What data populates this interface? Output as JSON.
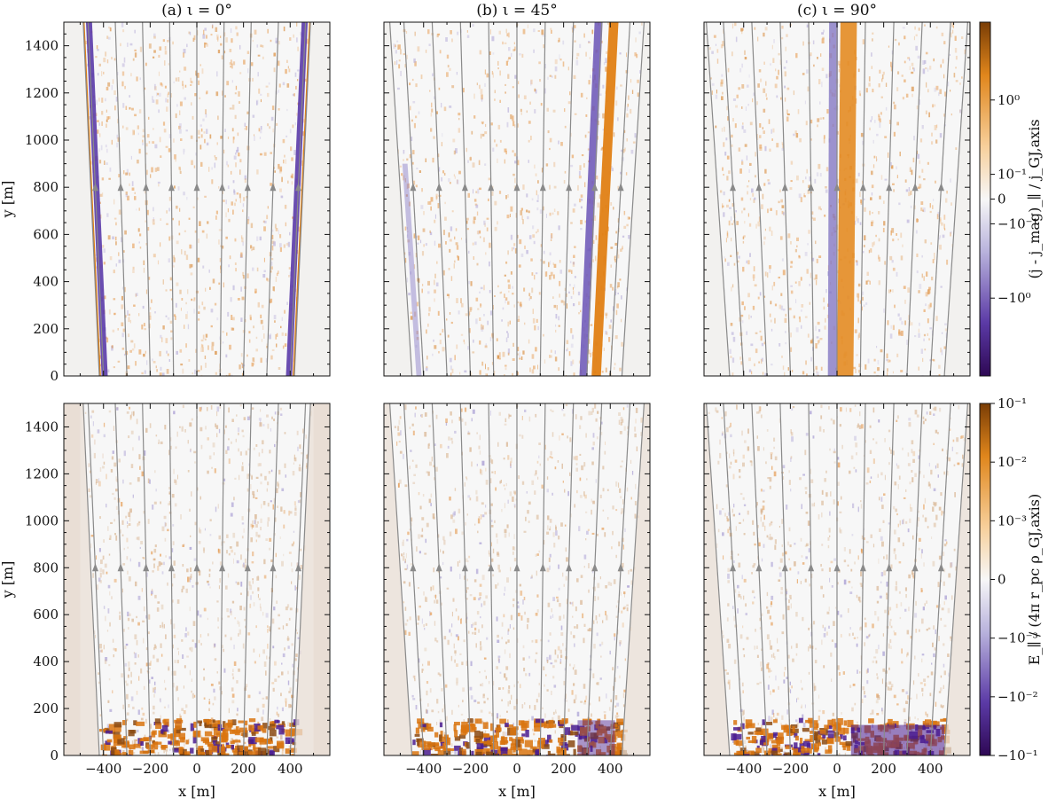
{
  "chart_data": [
    {
      "type": "heatmap",
      "title": "(a) ι = 0°",
      "row": 0,
      "col": 0,
      "xlabel": "",
      "ylabel": "y [m]",
      "xlim": [
        -570,
        570
      ],
      "ylim": [
        0,
        1500
      ],
      "xticks": [],
      "yticks": [
        0,
        200,
        400,
        600,
        800,
        1000,
        1200,
        1400
      ],
      "field_lines_x0": [
        -400,
        -300,
        -200,
        -100,
        0,
        100,
        200,
        300,
        400
      ],
      "arrow_y": 800,
      "cap_edges_at_y0": [
        -418,
        418
      ],
      "cap_edges_at_ytop": [
        -487,
        487
      ],
      "inclination_deg": 0
    },
    {
      "type": "heatmap",
      "title": "(b) ι = 45°",
      "row": 0,
      "col": 1,
      "xlabel": "",
      "ylabel": "",
      "xlim": [
        -570,
        570
      ],
      "ylim": [
        0,
        1500
      ],
      "xticks": [],
      "yticks": [],
      "field_lines_x0": [
        -400,
        -300,
        -200,
        -100,
        0,
        100,
        200,
        300,
        400
      ],
      "arrow_y": 800,
      "cap_edges_at_y0": [
        -450,
        450
      ],
      "cap_edges_at_ytop": [
        -545,
        545
      ],
      "inclination_deg": 45
    },
    {
      "type": "heatmap",
      "title": "(c) ι = 90°",
      "row": 0,
      "col": 2,
      "xlabel": "",
      "ylabel": "",
      "xlim": [
        -570,
        570
      ],
      "ylim": [
        0,
        1500
      ],
      "xticks": [],
      "yticks": [],
      "field_lines_x0": [
        -400,
        -300,
        -200,
        -100,
        0,
        100,
        200,
        300,
        400
      ],
      "arrow_y": 800,
      "cap_edges_at_y0": [
        -460,
        460
      ],
      "cap_edges_at_ytop": [
        -560,
        560
      ],
      "inclination_deg": 90
    },
    {
      "type": "heatmap",
      "title": "",
      "row": 1,
      "col": 0,
      "xlabel": "x [m]",
      "ylabel": "y [m]",
      "xlim": [
        -570,
        570
      ],
      "ylim": [
        0,
        1500
      ],
      "xticks": [
        -400,
        -200,
        0,
        200,
        400
      ],
      "yticks": [
        0,
        200,
        400,
        600,
        800,
        1000,
        1200,
        1400
      ],
      "field_lines_x0": [
        -400,
        -300,
        -200,
        -100,
        0,
        100,
        200,
        300,
        400
      ],
      "arrow_y": 800,
      "cap_edges_at_y0": [
        -418,
        418
      ],
      "cap_edges_at_ytop": [
        -487,
        487
      ],
      "inclination_deg": 0
    },
    {
      "type": "heatmap",
      "title": "",
      "row": 1,
      "col": 1,
      "xlabel": "x [m]",
      "ylabel": "",
      "xlim": [
        -570,
        570
      ],
      "ylim": [
        0,
        1500
      ],
      "xticks": [
        -400,
        -200,
        0,
        200,
        400
      ],
      "yticks": [],
      "field_lines_x0": [
        -400,
        -300,
        -200,
        -100,
        0,
        100,
        200,
        300,
        400
      ],
      "arrow_y": 800,
      "cap_edges_at_y0": [
        -450,
        450
      ],
      "cap_edges_at_ytop": [
        -545,
        545
      ],
      "inclination_deg": 45
    },
    {
      "type": "heatmap",
      "title": "",
      "row": 1,
      "col": 2,
      "xlabel": "x [m]",
      "ylabel": "",
      "xlim": [
        -570,
        570
      ],
      "ylim": [
        0,
        1500
      ],
      "xticks": [
        -400,
        -200,
        0,
        200,
        400
      ],
      "yticks": [],
      "field_lines_x0": [
        -400,
        -300,
        -200,
        -100,
        0,
        100,
        200,
        300,
        400
      ],
      "arrow_y": 800,
      "cap_edges_at_y0": [
        -460,
        460
      ],
      "cap_edges_at_ytop": [
        -560,
        560
      ],
      "inclination_deg": 90
    }
  ],
  "colorbars": [
    {
      "row": 0,
      "label": "(j - j_mag)_∥ / j_GJ,axis",
      "scale": "symlog",
      "ticks": [
        "10^0",
        "10^-1",
        "0",
        "-10^-1",
        "-10^0"
      ],
      "tick_positions": [
        1,
        0.1,
        0,
        -0.1,
        -1
      ],
      "vmin": -6,
      "vmax": 6
    },
    {
      "row": 1,
      "label": "E_∥ / (4π r_pc ρ_GJ,axis)",
      "scale": "symlog",
      "ticks": [
        "10^-1",
        "10^-2",
        "10^-3",
        "0",
        "-10^-3",
        "-10^-2",
        "-10^-1"
      ],
      "tick_positions": [
        0.1,
        0.01,
        0.001,
        0,
        -0.001,
        -0.01,
        -0.1
      ],
      "vmin": -0.1,
      "vmax": 0.1
    }
  ],
  "colors": {
    "positive": "#d9740f",
    "negative": "#4a1c8f",
    "neutral": "#f7f7f7",
    "field_line": "#8a8a8a",
    "axis": "#111111"
  }
}
